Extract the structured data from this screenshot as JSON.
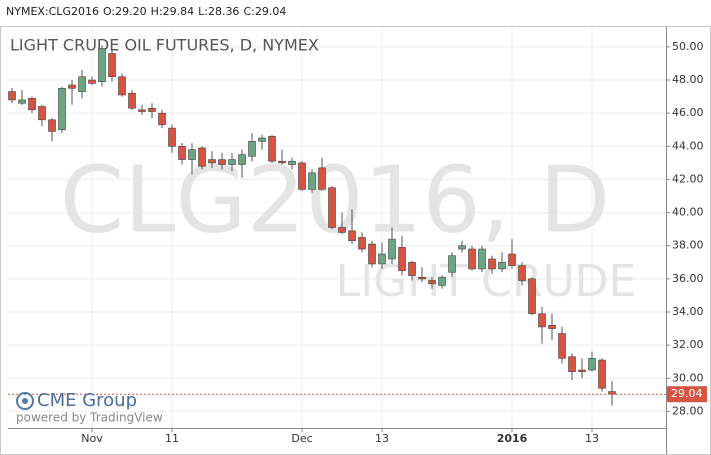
{
  "chart_data": {
    "type": "candlestick",
    "header": [
      "NYMEX:CLG2016",
      "O:29.20",
      "H:29.84",
      "L:28.36",
      "C:29.04"
    ],
    "title": "LIGHT CRUDE OIL FUTURES, D, NYMEX",
    "watermark": "CLG2016, D",
    "watermark_sub": "LIGHT CRUDE",
    "logo": "CME Group",
    "credit": "powered by TradingView",
    "x": [
      null,
      null,
      null,
      null,
      null,
      null,
      null,
      null,
      "Nov",
      null,
      null,
      null,
      null,
      null,
      null,
      null,
      "11",
      null,
      null,
      null,
      null,
      null,
      null,
      null,
      null,
      null,
      null,
      null,
      null,
      "Dec",
      null,
      null,
      null,
      null,
      null,
      null,
      null,
      "13",
      null,
      null,
      null,
      null,
      null,
      null,
      null,
      null,
      null,
      null,
      null,
      null,
      "2016",
      null,
      null,
      null,
      null,
      null,
      null,
      null,
      "13",
      null,
      null
    ],
    "bold_labels": [
      "2016"
    ],
    "open": [
      47.3,
      46.6,
      46.9,
      46.4,
      45.6,
      45.0,
      47.7,
      47.3,
      48.0,
      47.9,
      49.6,
      48.2,
      47.2,
      46.2,
      46.3,
      46.0,
      45.1,
      44.0,
      43.2,
      43.9,
      43.2,
      43.2,
      42.9,
      42.9,
      43.4,
      44.3,
      44.6,
      43.1,
      42.9,
      43.0,
      41.4,
      42.7,
      41.5,
      39.1,
      38.9,
      38.5,
      38.1,
      36.9,
      37.2,
      37.9,
      37.0,
      36.1,
      35.9,
      35.6,
      36.4,
      37.8,
      37.8,
      36.6,
      37.2,
      36.6,
      37.5,
      36.8,
      36.0,
      33.9,
      33.2,
      32.7,
      31.3,
      30.5,
      30.5,
      31.1,
      29.2
    ],
    "high": [
      47.5,
      47.4,
      47.0,
      46.5,
      45.7,
      47.6,
      48.0,
      48.6,
      48.2,
      50.1,
      49.8,
      48.4,
      47.4,
      46.5,
      46.6,
      46.2,
      45.3,
      44.2,
      44.2,
      44.0,
      43.7,
      43.6,
      43.6,
      43.8,
      44.8,
      44.7,
      44.7,
      43.8,
      43.3,
      43.1,
      42.6,
      43.3,
      41.6,
      40.0,
      40.2,
      38.8,
      38.3,
      38.2,
      39.1,
      38.6,
      37.1,
      36.7,
      36.1,
      36.2,
      37.6,
      38.3,
      38.0,
      38.0,
      37.4,
      37.6,
      38.4,
      37.0,
      36.1,
      34.3,
      33.9,
      33.1,
      31.5,
      31.2,
      31.6,
      31.2,
      29.84
    ],
    "low": [
      46.6,
      46.5,
      46.0,
      45.2,
      44.3,
      44.8,
      46.5,
      46.9,
      47.7,
      47.6,
      47.9,
      47.0,
      46.2,
      45.9,
      45.7,
      45.1,
      43.6,
      42.9,
      42.3,
      42.6,
      42.7,
      42.6,
      42.5,
      42.1,
      43.1,
      43.8,
      43.0,
      42.9,
      42.6,
      41.3,
      41.2,
      41.3,
      39.0,
      38.7,
      38.1,
      37.6,
      36.7,
      36.6,
      36.9,
      36.2,
      35.9,
      35.8,
      35.4,
      35.4,
      36.1,
      37.6,
      36.5,
      36.4,
      36.3,
      36.4,
      36.6,
      35.6,
      33.8,
      32.1,
      32.3,
      30.9,
      29.9,
      30.0,
      30.4,
      29.2,
      28.36
    ],
    "close": [
      46.8,
      46.8,
      46.2,
      45.6,
      44.9,
      47.5,
      47.5,
      48.2,
      47.8,
      49.9,
      48.2,
      47.1,
      46.3,
      46.1,
      46.1,
      45.3,
      44.0,
      43.2,
      43.8,
      42.8,
      43.0,
      42.9,
      43.2,
      43.5,
      44.3,
      44.5,
      43.1,
      43.0,
      43.1,
      41.4,
      42.4,
      41.4,
      39.1,
      38.8,
      38.3,
      37.8,
      36.9,
      37.5,
      38.4,
      36.5,
      36.2,
      36.0,
      35.7,
      36.1,
      37.4,
      38.0,
      36.6,
      37.8,
      36.6,
      37.0,
      36.8,
      35.9,
      33.9,
      33.1,
      33.0,
      31.2,
      30.4,
      30.4,
      31.2,
      29.4,
      29.04
    ],
    "up_color": "#6ba583",
    "down_color": "#d75442",
    "ylim": [
      27.0,
      51.2
    ],
    "yticks": [
      {
        "value": 28,
        "label": "28.00"
      },
      {
        "value": 30,
        "label": "30.00"
      },
      {
        "value": 32,
        "label": "32.00"
      },
      {
        "value": 34,
        "label": "34.00"
      },
      {
        "value": 36,
        "label": "36.00"
      },
      {
        "value": 38,
        "label": "38.00"
      },
      {
        "value": 40,
        "label": "40.00"
      },
      {
        "value": 42,
        "label": "42.00"
      },
      {
        "value": 44,
        "label": "44.00"
      },
      {
        "value": 46,
        "label": "46.00"
      },
      {
        "value": 48,
        "label": "48.00"
      },
      {
        "value": 50,
        "label": "50.00"
      }
    ],
    "grid": true
  }
}
